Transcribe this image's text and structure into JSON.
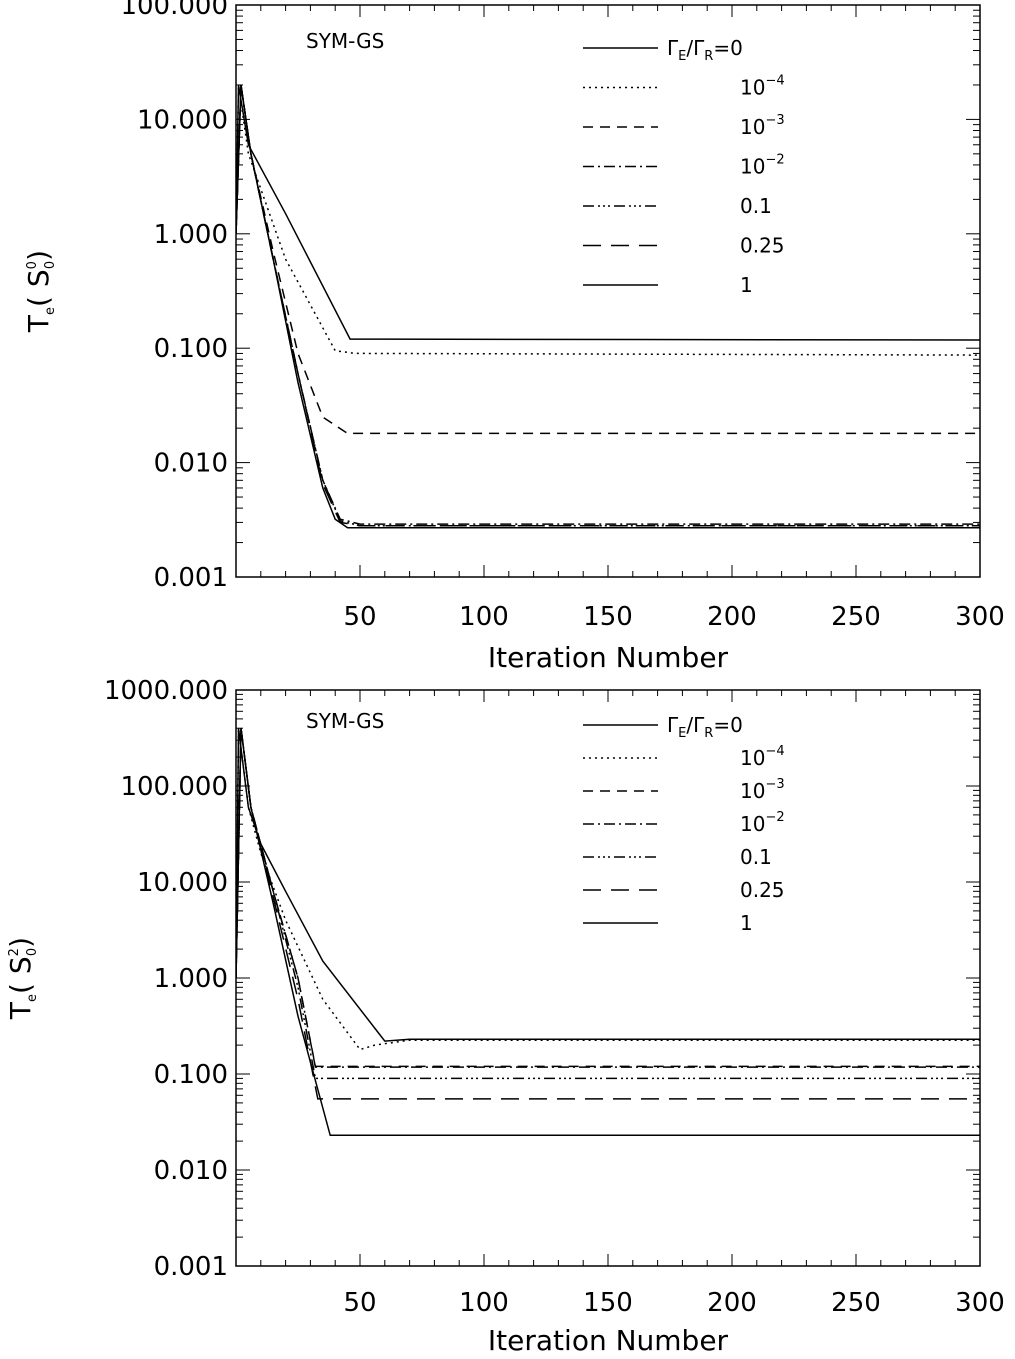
{
  "chart_data": [
    {
      "type": "line",
      "ylabel": {
        "base": "T",
        "sub": "e",
        "open": "( S",
        "sup": "0",
        "sub2": "0",
        "close": ")"
      },
      "xlabel": "Iteration Number",
      "scale": "log",
      "xlim": [
        0,
        300
      ],
      "ylim": [
        0.001,
        100
      ],
      "x_ticks": [
        50,
        100,
        150,
        200,
        250,
        300
      ],
      "y_ticks": [
        {
          "v": 0.001,
          "label": "0.001"
        },
        {
          "v": 0.01,
          "label": "0.010"
        },
        {
          "v": 0.1,
          "label": "0.100"
        },
        {
          "v": 1,
          "label": "1.000"
        },
        {
          "v": 10,
          "label": "10.000"
        },
        {
          "v": 100,
          "label": "100.000"
        }
      ],
      "annotation": "SYM-GS",
      "legend_title": "Γ_E/Γ_R=0",
      "series": [
        {
          "name": "Γ_E/Γ_R=0",
          "dash": "solid",
          "points": [
            [
              0,
              1
            ],
            [
              1,
              20
            ],
            [
              5,
              6
            ],
            [
              20,
              1.5
            ],
            [
              46,
              0.12
            ],
            [
              300,
              0.118
            ]
          ]
        },
        {
          "name": "10^-4",
          "dash": "dot",
          "points": [
            [
              0,
              1
            ],
            [
              1,
              20
            ],
            [
              5,
              5
            ],
            [
              20,
              0.6
            ],
            [
              40,
              0.095
            ],
            [
              48,
              0.09
            ],
            [
              300,
              0.087
            ]
          ]
        },
        {
          "name": "10^-3",
          "dash": "dash",
          "points": [
            [
              0,
              1
            ],
            [
              2,
              20
            ],
            [
              6,
              5
            ],
            [
              15,
              0.7
            ],
            [
              25,
              0.09
            ],
            [
              35,
              0.025
            ],
            [
              45,
              0.018
            ],
            [
              300,
              0.018
            ]
          ]
        },
        {
          "name": "10^-2",
          "dash": "dashdot",
          "points": [
            [
              0,
              1
            ],
            [
              2,
              20
            ],
            [
              6,
              5
            ],
            [
              15,
              0.6
            ],
            [
              25,
              0.06
            ],
            [
              35,
              0.007
            ],
            [
              42,
              0.0032
            ],
            [
              50,
              0.0029
            ],
            [
              300,
              0.0029
            ]
          ]
        },
        {
          "name": "0.1",
          "dash": "dashdotdotdot",
          "points": [
            [
              0,
              1
            ],
            [
              2,
              20
            ],
            [
              6,
              5
            ],
            [
              15,
              0.6
            ],
            [
              25,
              0.06
            ],
            [
              35,
              0.007
            ],
            [
              42,
              0.0031
            ],
            [
              50,
              0.0028
            ],
            [
              300,
              0.0028
            ]
          ]
        },
        {
          "name": "0.25",
          "dash": "longdash",
          "points": [
            [
              0,
              1
            ],
            [
              2,
              20
            ],
            [
              6,
              5
            ],
            [
              15,
              0.6
            ],
            [
              25,
              0.06
            ],
            [
              35,
              0.0065
            ],
            [
              42,
              0.003
            ],
            [
              50,
              0.0028
            ],
            [
              300,
              0.0028
            ]
          ]
        },
        {
          "name": "1",
          "dash": "solid",
          "points": [
            [
              0,
              1
            ],
            [
              2,
              20
            ],
            [
              6,
              5
            ],
            [
              15,
              0.6
            ],
            [
              25,
              0.05
            ],
            [
              35,
              0.006
            ],
            [
              40,
              0.0032
            ],
            [
              45,
              0.0027
            ],
            [
              300,
              0.0027
            ]
          ]
        }
      ]
    },
    {
      "type": "line",
      "ylabel": {
        "base": "T",
        "sub": "e",
        "open": "( S",
        "sup": "2",
        "sub2": "0",
        "close": ")"
      },
      "xlabel": "Iteration Number",
      "scale": "log",
      "xlim": [
        0,
        300
      ],
      "ylim": [
        0.001,
        1000
      ],
      "x_ticks": [
        50,
        100,
        150,
        200,
        250,
        300
      ],
      "y_ticks": [
        {
          "v": 0.001,
          "label": "0.001"
        },
        {
          "v": 0.01,
          "label": "0.010"
        },
        {
          "v": 0.1,
          "label": "0.100"
        },
        {
          "v": 1,
          "label": "1.000"
        },
        {
          "v": 10,
          "label": "10.000"
        },
        {
          "v": 100,
          "label": "100.000"
        },
        {
          "v": 1000,
          "label": "1000.000"
        }
      ],
      "annotation": "SYM-GS",
      "legend_title": "Γ_E/Γ_R=0",
      "series": [
        {
          "name": "Γ_E/Γ_R=0",
          "dash": "solid",
          "points": [
            [
              0,
              1
            ],
            [
              1,
              400
            ],
            [
              5,
              60
            ],
            [
              10,
              25
            ],
            [
              20,
              8
            ],
            [
              35,
              1.5
            ],
            [
              60,
              0.22
            ],
            [
              70,
              0.23
            ],
            [
              300,
              0.23
            ]
          ]
        },
        {
          "name": "10^-4",
          "dash": "dot",
          "points": [
            [
              0,
              1
            ],
            [
              1,
              400
            ],
            [
              5,
              60
            ],
            [
              10,
              20
            ],
            [
              20,
              4
            ],
            [
              35,
              0.6
            ],
            [
              50,
              0.18
            ],
            [
              56,
              0.2
            ],
            [
              70,
              0.225
            ],
            [
              300,
              0.225
            ]
          ]
        },
        {
          "name": "10^-3",
          "dash": "dash",
          "points": [
            [
              0,
              1
            ],
            [
              2,
              400
            ],
            [
              6,
              60
            ],
            [
              15,
              8
            ],
            [
              25,
              1
            ],
            [
              32,
              0.12
            ],
            [
              300,
              0.12
            ]
          ]
        },
        {
          "name": "10^-2",
          "dash": "dashdot",
          "points": [
            [
              0,
              1
            ],
            [
              2,
              400
            ],
            [
              6,
              60
            ],
            [
              15,
              8
            ],
            [
              25,
              1
            ],
            [
              32,
              0.118
            ],
            [
              300,
              0.118
            ]
          ]
        },
        {
          "name": "0.1",
          "dash": "dashdotdotdot",
          "points": [
            [
              0,
              1
            ],
            [
              2,
              400
            ],
            [
              6,
              60
            ],
            [
              15,
              8
            ],
            [
              25,
              0.8
            ],
            [
              32,
              0.09
            ],
            [
              300,
              0.09
            ]
          ]
        },
        {
          "name": "0.25",
          "dash": "longdash",
          "points": [
            [
              0,
              1
            ],
            [
              2,
              400
            ],
            [
              6,
              60
            ],
            [
              15,
              7
            ],
            [
              25,
              0.6
            ],
            [
              33,
              0.055
            ],
            [
              300,
              0.055
            ]
          ]
        },
        {
          "name": "1",
          "dash": "solid",
          "points": [
            [
              0,
              1
            ],
            [
              2,
              400
            ],
            [
              6,
              60
            ],
            [
              15,
              6
            ],
            [
              25,
              0.4
            ],
            [
              38,
              0.023
            ],
            [
              300,
              0.023
            ]
          ]
        }
      ]
    }
  ],
  "legend_entries": [
    {
      "text": "Γ",
      "sub": "E",
      "mid": "/Γ",
      "sub2": "R",
      "tail": "=0"
    },
    {
      "text": "10",
      "sup": "−4"
    },
    {
      "text": "10",
      "sup": "−3"
    },
    {
      "text": "10",
      "sup": "−2"
    },
    {
      "text": "0.1"
    },
    {
      "text": "0.25"
    },
    {
      "text": "1"
    }
  ]
}
